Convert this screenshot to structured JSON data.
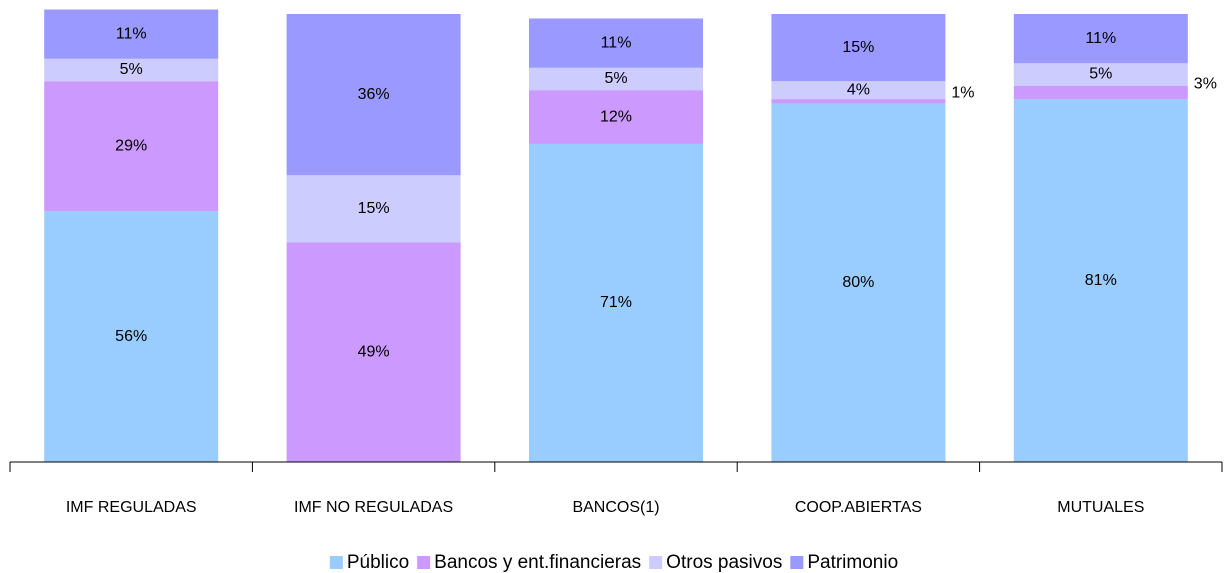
{
  "chart_data": {
    "type": "stacked_bar",
    "categories": [
      "IMF REGULADAS",
      "IMF NO REGULADAS",
      "BANCOS(1)",
      "COOP.ABIERTAS",
      "MUTUALES"
    ],
    "series": [
      {
        "name": "Público",
        "color": "#99ccff",
        "values": [
          56,
          0,
          71,
          80,
          81
        ],
        "value_labels": [
          "56%",
          null,
          "71%",
          "80%",
          "81%"
        ]
      },
      {
        "name": "Bancos y ent.financieras",
        "color": "#cc99ff",
        "values": [
          29,
          49,
          12,
          1,
          3
        ],
        "value_labels": [
          "29%",
          "49%",
          "12%",
          "1%",
          "3%"
        ]
      },
      {
        "name": "Otros pasivos",
        "color": "#ccccff",
        "values": [
          5,
          15,
          5,
          4,
          5
        ],
        "value_labels": [
          "5%",
          "15%",
          "5%",
          "4%",
          "5%"
        ]
      },
      {
        "name": "Patrimonio",
        "color": "#9999ff",
        "values": [
          11,
          36,
          11,
          15,
          11
        ],
        "value_labels": [
          "11%",
          "36%",
          "11%",
          "15%",
          "11%"
        ]
      }
    ],
    "ylim": [
      0,
      100
    ],
    "legend": "bottom"
  }
}
